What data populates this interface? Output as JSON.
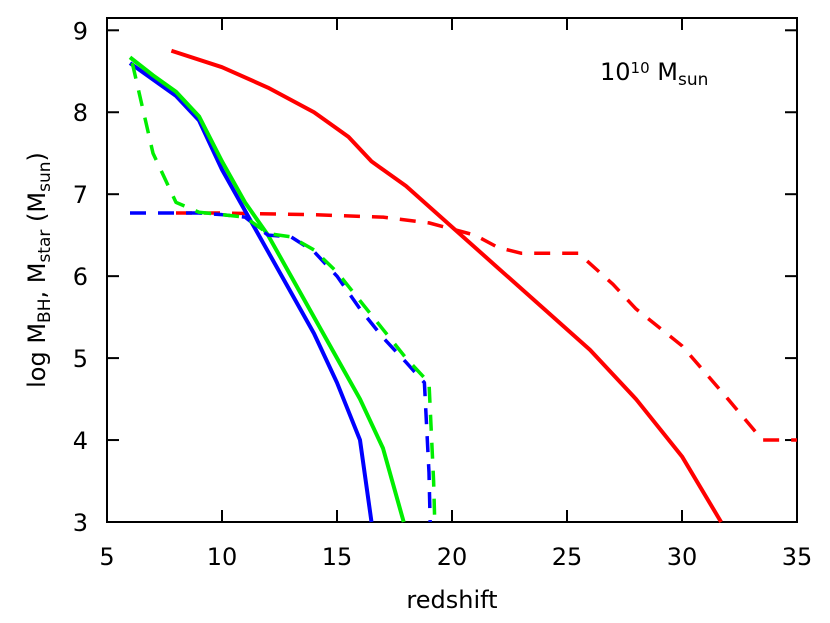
{
  "chart_data": {
    "type": "line",
    "xlabel": "redshift",
    "ylabel": [
      {
        "text": "log M"
      },
      {
        "text": "BH",
        "sub": true
      },
      {
        "text": ", M"
      },
      {
        "text": "star",
        "sub": true
      },
      {
        "text": "  (M"
      },
      {
        "text": "sun",
        "sub": true
      },
      {
        "text": ")"
      }
    ],
    "annotation": [
      {
        "text": "10"
      },
      {
        "text": "10",
        "sup": true
      },
      {
        "text": " M"
      },
      {
        "text": "sun",
        "sub": true
      }
    ],
    "xlim": [
      5,
      35
    ],
    "ylim": [
      3,
      9.15
    ],
    "xticks": [
      5,
      10,
      15,
      20,
      25,
      30,
      35
    ],
    "yticks": [
      3,
      4,
      5,
      6,
      7,
      8,
      9
    ],
    "series": [
      {
        "color": "#ff0000",
        "dash": false,
        "x": [
          7.8,
          10,
          12,
          14,
          15.5,
          16.5,
          18,
          20,
          22,
          24,
          26,
          28,
          30,
          31.7
        ],
        "values": [
          8.75,
          8.55,
          8.3,
          8.0,
          7.7,
          7.4,
          7.1,
          6.6,
          6.1,
          5.6,
          5.1,
          4.5,
          3.8,
          3.0
        ]
      },
      {
        "color": "#ff0000",
        "dash": true,
        "x": [
          8,
          10,
          14,
          17,
          19,
          21,
          22,
          23,
          25.5,
          27,
          28,
          30,
          32,
          33.5,
          35
        ],
        "values": [
          6.77,
          6.77,
          6.75,
          6.72,
          6.65,
          6.5,
          6.35,
          6.28,
          6.28,
          5.9,
          5.6,
          5.15,
          4.5,
          4.0,
          4.0
        ]
      },
      {
        "color": "#0000ff",
        "dash": false,
        "x": [
          6,
          7,
          8,
          9,
          10,
          11,
          12,
          13,
          14,
          15,
          16,
          16.5
        ],
        "values": [
          8.6,
          8.4,
          8.2,
          7.9,
          7.3,
          6.8,
          6.3,
          5.8,
          5.3,
          4.7,
          4.0,
          3.0
        ]
      },
      {
        "color": "#00ee00",
        "dash": false,
        "x": [
          6,
          7,
          8,
          9,
          10,
          11,
          12,
          13,
          14,
          15,
          16,
          17,
          17.9
        ],
        "values": [
          8.67,
          8.45,
          8.25,
          7.95,
          7.4,
          6.9,
          6.5,
          6.0,
          5.5,
          5.0,
          4.5,
          3.9,
          3.0
        ]
      },
      {
        "color": "#0000ff",
        "dash": true,
        "x": [
          6,
          9,
          10,
          11,
          12,
          13,
          14,
          15,
          16,
          17,
          18,
          18.8,
          19,
          19.05
        ],
        "values": [
          6.77,
          6.77,
          6.75,
          6.72,
          6.5,
          6.48,
          6.3,
          6.0,
          5.6,
          5.25,
          4.95,
          4.7,
          3.6,
          3.0
        ]
      },
      {
        "color": "#00ee00",
        "dash": true,
        "x": [
          6.1,
          7,
          8,
          9,
          10,
          11,
          12,
          13,
          14,
          15,
          16,
          17,
          18,
          19,
          19.2,
          19.25
        ],
        "values": [
          8.6,
          7.5,
          6.9,
          6.78,
          6.75,
          6.72,
          6.52,
          6.48,
          6.32,
          6.05,
          5.7,
          5.35,
          5.0,
          4.7,
          3.5,
          3.0
        ]
      }
    ]
  }
}
